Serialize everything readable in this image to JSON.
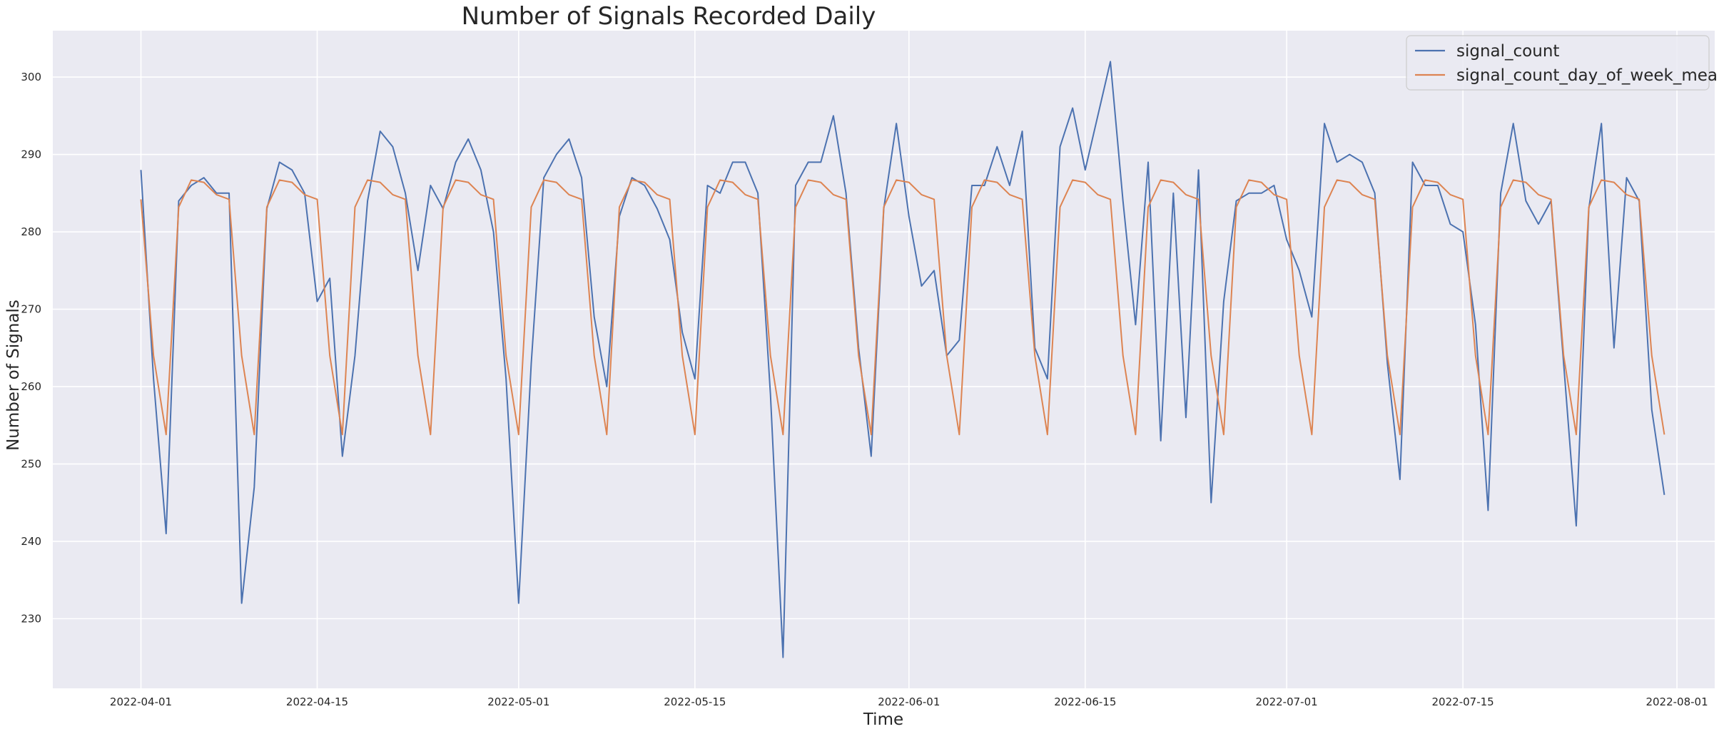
{
  "chart_data": {
    "type": "line",
    "title": "Number of Signals Recorded Daily",
    "xlabel": "Time",
    "ylabel": "Number of Signals",
    "x_start": "2022-04-01",
    "x_end": "2022-07-31",
    "xlim": [
      "2022-03-25",
      "2022-08-04"
    ],
    "ylim": [
      221,
      306
    ],
    "x_ticks": [
      "2022-04-01",
      "2022-04-15",
      "2022-05-01",
      "2022-05-15",
      "2022-06-01",
      "2022-06-15",
      "2022-07-01",
      "2022-07-15",
      "2022-08-01"
    ],
    "y_ticks": [
      230,
      240,
      250,
      260,
      270,
      280,
      290,
      300
    ],
    "grid": true,
    "legend_position": "top-right",
    "series": [
      {
        "name": "signal_count",
        "color": "#4c72b0",
        "values": [
          288,
          261,
          241,
          284,
          286,
          287,
          285,
          285,
          232,
          247,
          283,
          289,
          288,
          285,
          271,
          274,
          251,
          264,
          284,
          293,
          291,
          285,
          275,
          286,
          283,
          289,
          292,
          288,
          280,
          261,
          232,
          263,
          287,
          290,
          292,
          287,
          269,
          260,
          282,
          287,
          286,
          283,
          279,
          267,
          261,
          286,
          285,
          289,
          289,
          285,
          259,
          225,
          286,
          289,
          289,
          295,
          285,
          265,
          251,
          283,
          294,
          282,
          273,
          275,
          264,
          266,
          286,
          286,
          291,
          286,
          293,
          265,
          261,
          291,
          296,
          288,
          295,
          302,
          284,
          268,
          289,
          253,
          285,
          256,
          288,
          245,
          271,
          284,
          285,
          285,
          286,
          279,
          275,
          269,
          294,
          289,
          290,
          289,
          285,
          263,
          248,
          289,
          286,
          286,
          281,
          280,
          268,
          244,
          285,
          294,
          284,
          281,
          284,
          263,
          242,
          283,
          294,
          265,
          287,
          284,
          257,
          246
        ]
      },
      {
        "name": "signal_count_day_of_week_mean",
        "color": "#dd8452",
        "values": [
          284.2,
          264.0,
          253.8,
          283.2,
          286.7,
          286.4,
          284.8,
          284.2,
          264.0,
          253.8,
          283.2,
          286.7,
          286.4,
          284.8,
          284.2,
          264.0,
          253.8,
          283.2,
          286.7,
          286.4,
          284.8,
          284.2,
          264.0,
          253.8,
          283.2,
          286.7,
          286.4,
          284.8,
          284.2,
          264.0,
          253.8,
          283.2,
          286.7,
          286.4,
          284.8,
          284.2,
          264.0,
          253.8,
          283.2,
          286.7,
          286.4,
          284.8,
          284.2,
          264.0,
          253.8,
          283.2,
          286.7,
          286.4,
          284.8,
          284.2,
          264.0,
          253.8,
          283.2,
          286.7,
          286.4,
          284.8,
          284.2,
          264.0,
          253.8,
          283.2,
          286.7,
          286.4,
          284.8,
          284.2,
          264.0,
          253.8,
          283.2,
          286.7,
          286.4,
          284.8,
          284.2,
          264.0,
          253.8,
          283.2,
          286.7,
          286.4,
          284.8,
          284.2,
          264.0,
          253.8,
          283.2,
          286.7,
          286.4,
          284.8,
          284.2,
          264.0,
          253.8,
          283.2,
          286.7,
          286.4,
          284.8,
          284.2,
          264.0,
          253.8,
          283.2,
          286.7,
          286.4,
          284.8,
          284.2,
          264.0,
          253.8,
          283.2,
          286.7,
          286.4,
          284.8,
          284.2,
          264.0,
          253.8,
          283.2,
          286.7,
          286.4,
          284.8,
          284.2,
          264.0,
          253.8,
          283.2,
          286.7,
          286.4,
          284.8,
          284.2,
          264.0,
          253.8
        ]
      }
    ]
  },
  "colors": {
    "plot_background": "#eaeaf2",
    "grid": "#ffffff",
    "text": "#262626"
  }
}
